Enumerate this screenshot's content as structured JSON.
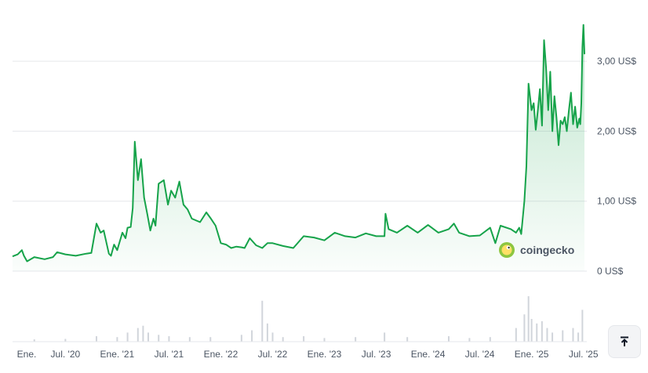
{
  "chart_data": {
    "type": "area",
    "y_unit": "US$",
    "y_ticks": [
      "0 US$",
      "1,00 US$",
      "2,00 US$",
      "3,00 US$"
    ],
    "y_tick_values": [
      0,
      1,
      2,
      3
    ],
    "ylim": [
      0,
      3.6
    ],
    "x_ticks": [
      "Ene.",
      "Jul. '20",
      "Ene. '21",
      "Jul. '21",
      "Ene. '22",
      "Jul. '22",
      "Ene. '23",
      "Jul. '23",
      "Ene. '24",
      "Jul. '24",
      "Ene. '25",
      "Jul. '25"
    ],
    "x_tick_dates": [
      2020.0,
      2020.5,
      2021.0,
      2021.5,
      2022.0,
      2022.5,
      2023.0,
      2023.5,
      2024.0,
      2024.5,
      2025.0,
      2025.5
    ],
    "xlim": [
      2019.99,
      2025.51
    ],
    "grid": true,
    "line_color": "#16a34a",
    "fill_color": "#16a34a",
    "volume_color": "#d1d5db",
    "price": {
      "x": [
        2019.99,
        2020.04,
        2020.08,
        2020.1,
        2020.13,
        2020.2,
        2020.3,
        2020.38,
        2020.42,
        2020.5,
        2020.6,
        2020.7,
        2020.75,
        2020.8,
        2020.84,
        2020.87,
        2020.92,
        2020.94,
        2020.97,
        2021.0,
        2021.05,
        2021.08,
        2021.1,
        2021.13,
        2021.15,
        2021.17,
        2021.2,
        2021.23,
        2021.26,
        2021.29,
        2021.32,
        2021.35,
        2021.37,
        2021.4,
        2021.45,
        2021.49,
        2021.52,
        2021.56,
        2021.6,
        2021.64,
        2021.68,
        2021.72,
        2021.8,
        2021.86,
        2021.9,
        2021.95,
        2022.0,
        2022.05,
        2022.1,
        2022.15,
        2022.2,
        2022.23,
        2022.28,
        2022.34,
        2022.4,
        2022.45,
        2022.5,
        2022.6,
        2022.7,
        2022.8,
        2022.9,
        2023.0,
        2023.1,
        2023.2,
        2023.3,
        2023.4,
        2023.5,
        2023.58,
        2023.59,
        2023.62,
        2023.7,
        2023.8,
        2023.9,
        2024.0,
        2024.1,
        2024.2,
        2024.25,
        2024.3,
        2024.4,
        2024.5,
        2024.6,
        2024.65,
        2024.7,
        2024.8,
        2024.85,
        2024.88,
        2024.9,
        2024.93,
        2024.95,
        2024.97,
        2025.0,
        2025.02,
        2025.04,
        2025.06,
        2025.08,
        2025.1,
        2025.12,
        2025.14,
        2025.16,
        2025.18,
        2025.2,
        2025.22,
        2025.24,
        2025.26,
        2025.28,
        2025.3,
        2025.32,
        2025.34,
        2025.36,
        2025.38,
        2025.4,
        2025.42,
        2025.44,
        2025.46,
        2025.47,
        2025.48,
        2025.49,
        2025.5,
        2025.51
      ],
      "y": [
        0.21,
        0.24,
        0.3,
        0.22,
        0.14,
        0.2,
        0.17,
        0.2,
        0.27,
        0.24,
        0.22,
        0.25,
        0.26,
        0.68,
        0.55,
        0.58,
        0.25,
        0.22,
        0.38,
        0.3,
        0.55,
        0.47,
        0.62,
        0.63,
        0.9,
        1.85,
        1.3,
        1.6,
        1.05,
        0.82,
        0.58,
        0.75,
        0.65,
        1.25,
        1.3,
        0.95,
        1.15,
        1.05,
        1.28,
        0.95,
        0.88,
        0.75,
        0.7,
        0.84,
        0.76,
        0.65,
        0.4,
        0.38,
        0.33,
        0.35,
        0.34,
        0.33,
        0.47,
        0.37,
        0.33,
        0.4,
        0.4,
        0.36,
        0.33,
        0.5,
        0.48,
        0.44,
        0.55,
        0.5,
        0.48,
        0.54,
        0.5,
        0.5,
        0.82,
        0.6,
        0.55,
        0.65,
        0.55,
        0.66,
        0.55,
        0.6,
        0.68,
        0.55,
        0.5,
        0.51,
        0.62,
        0.4,
        0.65,
        0.6,
        0.55,
        0.62,
        0.53,
        1.0,
        1.5,
        2.68,
        2.3,
        2.4,
        2.02,
        2.3,
        2.6,
        2.08,
        3.3,
        2.9,
        2.3,
        2.85,
        2.0,
        2.5,
        2.2,
        1.8,
        2.15,
        2.1,
        2.2,
        2.0,
        2.3,
        2.55,
        2.1,
        2.35,
        2.05,
        2.18,
        2.1,
        2.4,
        3.2,
        3.52,
        3.1
      ]
    },
    "volume": {
      "x": [
        2020.2,
        2020.5,
        2020.8,
        2021.0,
        2021.1,
        2021.2,
        2021.25,
        2021.3,
        2021.4,
        2021.5,
        2021.7,
        2021.9,
        2022.2,
        2022.3,
        2022.4,
        2022.45,
        2022.5,
        2022.6,
        2022.8,
        2023.0,
        2023.3,
        2023.58,
        2023.8,
        2024.2,
        2024.4,
        2024.6,
        2024.85,
        2024.93,
        2024.97,
        2025.0,
        2025.05,
        2025.1,
        2025.15,
        2025.2,
        2025.3,
        2025.4,
        2025.45,
        2025.49
      ],
      "v": [
        0.05,
        0.06,
        0.12,
        0.1,
        0.2,
        0.3,
        0.35,
        0.2,
        0.15,
        0.12,
        0.1,
        0.1,
        0.15,
        0.25,
        0.9,
        0.4,
        0.2,
        0.1,
        0.12,
        0.08,
        0.1,
        0.2,
        0.1,
        0.12,
        0.08,
        0.1,
        0.3,
        0.6,
        1.0,
        0.5,
        0.4,
        0.45,
        0.3,
        0.2,
        0.25,
        0.3,
        0.2,
        0.7
      ]
    }
  },
  "watermark": {
    "brand": "coingecko"
  },
  "controls": {
    "scroll_top_icon": "arrow-up-to-line-icon"
  }
}
